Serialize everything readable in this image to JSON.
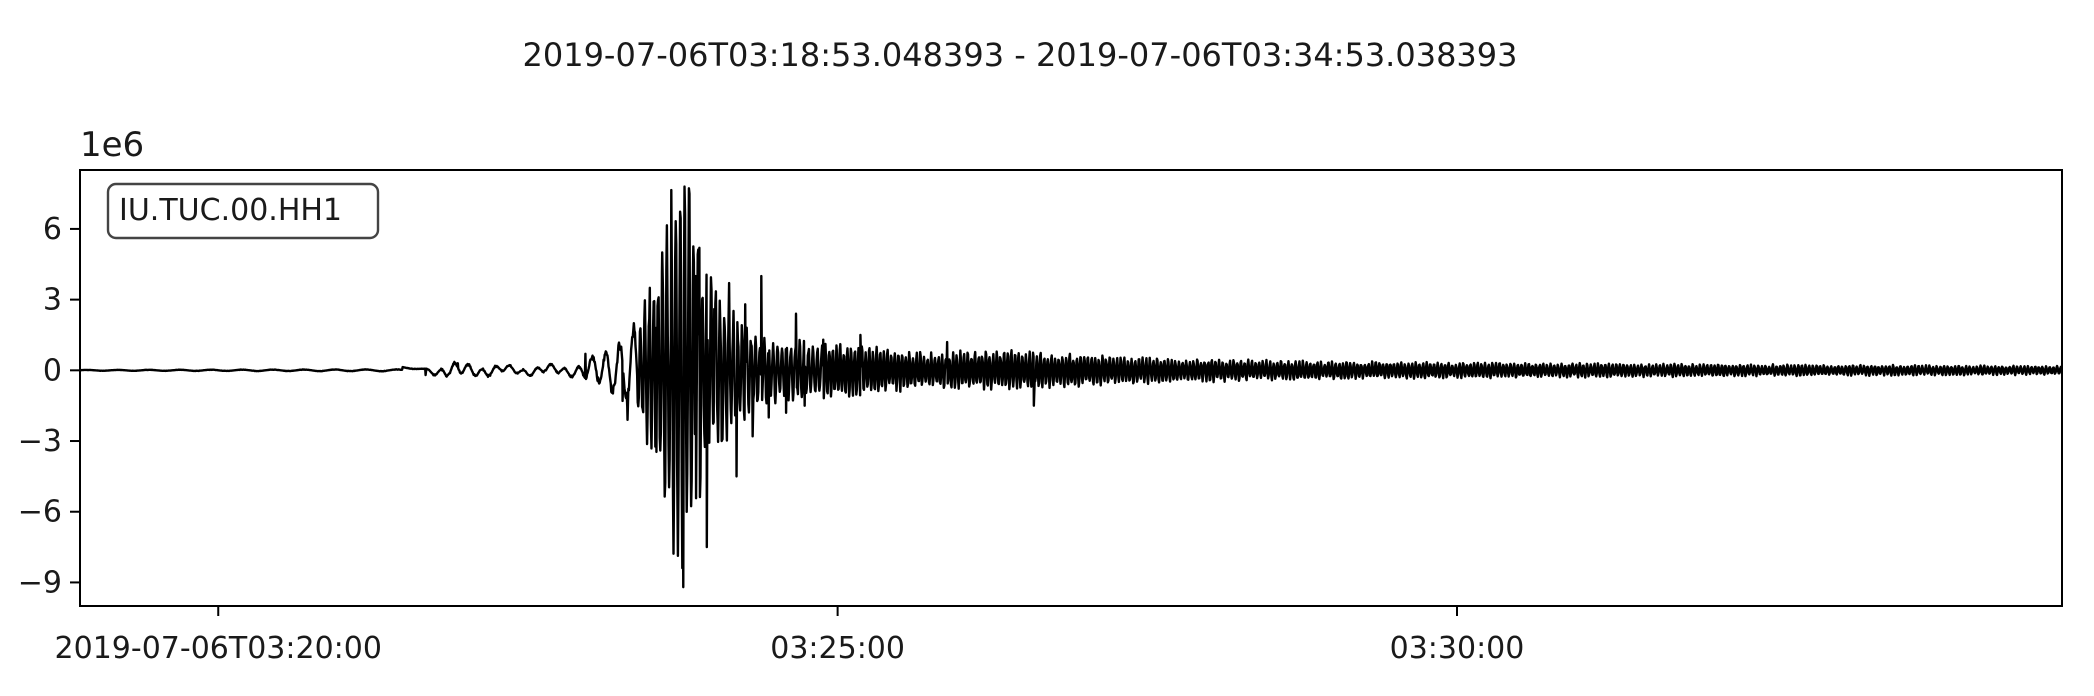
{
  "chart_data": {
    "type": "line",
    "title": "2019-07-06T03:18:53.048393  -  2019-07-06T03:34:53.038393",
    "xlabel": "",
    "ylabel": "",
    "y_scale_label": "1e6",
    "y_multiplier": 1000000,
    "x_units": "minutes since 2019-07-06T03:18:53.048393",
    "xlim": [
      0,
      16
    ],
    "ylim": [
      -10,
      8.5
    ],
    "grid": false,
    "legend": {
      "position": "top-left",
      "label": "IU.TUC.00.HH1"
    },
    "y_ticks": [
      {
        "value": 6,
        "label": "6"
      },
      {
        "value": 3,
        "label": "3"
      },
      {
        "value": 0,
        "label": "0"
      },
      {
        "value": -3,
        "label": "−3"
      },
      {
        "value": -6,
        "label": "−6"
      },
      {
        "value": -9,
        "label": "−9"
      }
    ],
    "x_ticks": [
      {
        "value": 1.116,
        "label": "2019-07-06T03:20:00"
      },
      {
        "value": 6.116,
        "label": "03:25:00"
      },
      {
        "value": 11.116,
        "label": "03:30:00"
      }
    ],
    "series": [
      {
        "name": "IU.TUC.00.HH1",
        "color": "#000000",
        "envelope_minutes": [
          0,
          2.79,
          3.0,
          3.5,
          4.0,
          4.2,
          4.4,
          4.6,
          4.65,
          4.75,
          4.85,
          4.95,
          5.05,
          5.15,
          5.3,
          5.5,
          5.8,
          6.2,
          6.8,
          7.5,
          8.5,
          9.5,
          11,
          12.5,
          14,
          16
        ],
        "envelope_amplitude": [
          0.02,
          0.05,
          0.3,
          0.15,
          0.2,
          0.8,
          1.5,
          3.5,
          5.0,
          7.5,
          9.2,
          7.4,
          4.5,
          4.0,
          2.5,
          1.6,
          1.3,
          1.2,
          0.8,
          0.9,
          0.6,
          0.45,
          0.35,
          0.3,
          0.25,
          0.2
        ],
        "notable_points": [
          {
            "x": 2.79,
            "y": -0.2
          },
          {
            "x": 3.05,
            "y": 0.3
          },
          {
            "x": 3.3,
            "y": -0.2
          },
          {
            "x": 4.08,
            "y": 0.7
          },
          {
            "x": 4.38,
            "y": -1.3
          },
          {
            "x": 4.42,
            "y": -2.1
          },
          {
            "x": 4.6,
            "y": 3.5
          },
          {
            "x": 4.65,
            "y": 1.8
          },
          {
            "x": 4.7,
            "y": 5.0
          },
          {
            "x": 4.77,
            "y": 1.5
          },
          {
            "x": 4.82,
            "y": -3.8
          },
          {
            "x": 4.87,
            "y": -9.2
          },
          {
            "x": 4.92,
            "y": 7.5
          },
          {
            "x": 4.97,
            "y": 4.0
          },
          {
            "x": 5.0,
            "y": 5.2
          },
          {
            "x": 5.06,
            "y": -7.5
          },
          {
            "x": 5.12,
            "y": 2.6
          },
          {
            "x": 5.18,
            "y": -3.0
          },
          {
            "x": 5.24,
            "y": 3.7
          },
          {
            "x": 5.3,
            "y": -4.5
          },
          {
            "x": 5.37,
            "y": 2.8
          },
          {
            "x": 5.43,
            "y": -2.8
          },
          {
            "x": 5.5,
            "y": 4.0
          },
          {
            "x": 5.56,
            "y": -2.0
          },
          {
            "x": 5.63,
            "y": 1.0
          },
          {
            "x": 5.7,
            "y": -1.8
          },
          {
            "x": 5.78,
            "y": 2.4
          },
          {
            "x": 5.85,
            "y": -1.5
          },
          {
            "x": 6.0,
            "y": 1.3
          },
          {
            "x": 6.3,
            "y": 1.5
          },
          {
            "x": 7.0,
            "y": 1.2
          },
          {
            "x": 7.7,
            "y": -1.5
          }
        ]
      }
    ]
  }
}
